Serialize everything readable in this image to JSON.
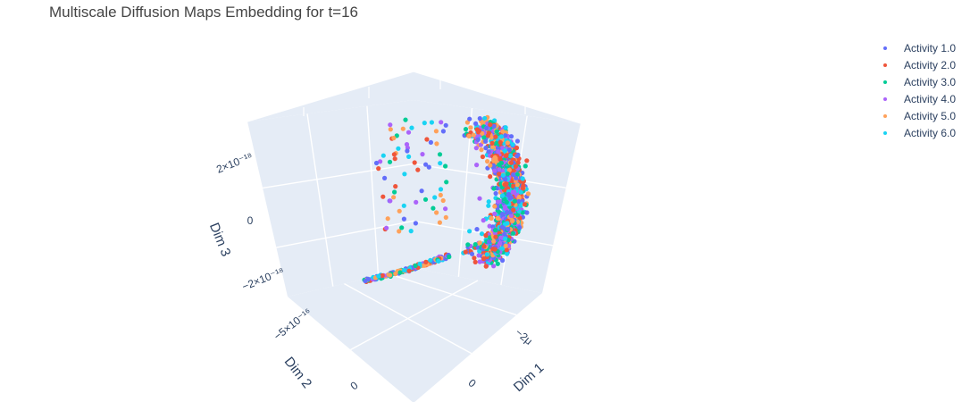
{
  "title": "Multiscale Diffusion Maps Embedding for t=16",
  "colors": {
    "background": "#ffffff",
    "pane": "#E5ECF6",
    "grid": "#ffffff",
    "text": "#2a3f5f"
  },
  "chart_data": {
    "type": "scatter",
    "dimensions": "3d",
    "title": "Multiscale Diffusion Maps Embedding for t=16",
    "axes": {
      "x": {
        "label": "Dim 1",
        "tick_labels": [
          "0",
          "−2μ"
        ]
      },
      "y": {
        "label": "Dim 2",
        "tick_labels": [
          "0",
          "−5×10⁻¹⁶"
        ]
      },
      "z": {
        "label": "Dim 3",
        "tick_labels": [
          "2×10⁻¹⁸",
          "0",
          "−2×10⁻¹⁸"
        ]
      }
    },
    "legend_position": "top-right",
    "series": [
      {
        "name": "Activity 1.0",
        "color": "#636efa"
      },
      {
        "name": "Activity 2.0",
        "color": "#EF553B"
      },
      {
        "name": "Activity 3.0",
        "color": "#00cc96"
      },
      {
        "name": "Activity 4.0",
        "color": "#ab63fa"
      },
      {
        "name": "Activity 5.0",
        "color": "#FFA15A"
      },
      {
        "name": "Activity 6.0",
        "color": "#19d3f3"
      }
    ]
  }
}
